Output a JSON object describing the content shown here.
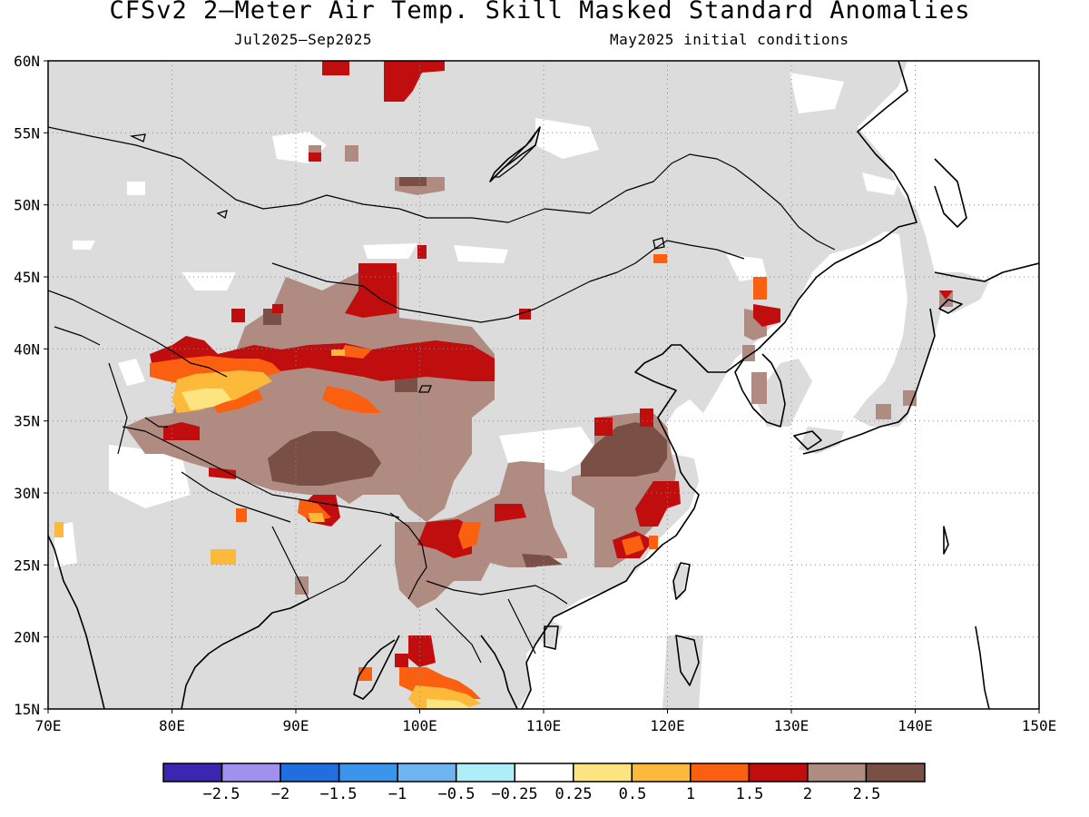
{
  "header": {
    "title": "CFSv2 2—Meter Air Temp. Skill Masked Standard Anomalies",
    "period": "Jul2025—Sep2025",
    "init": "May2025 initial conditions"
  },
  "map": {
    "lon_range": [
      70,
      150
    ],
    "lat_range": [
      15,
      60
    ],
    "lon_ticks": [
      "70E",
      "80E",
      "90E",
      "100E",
      "110E",
      "120E",
      "130E",
      "140E",
      "150E"
    ],
    "lat_ticks": [
      "15N",
      "20N",
      "25N",
      "30N",
      "35N",
      "40N",
      "45N",
      "50N",
      "55N",
      "60N"
    ],
    "masked_color": "#dcdcdc",
    "no_skill_color": "#ffffff",
    "gridlines": "dotted"
  },
  "colorbar": {
    "labels": [
      "−2.5",
      "−2",
      "−1.5",
      "−1",
      "−0.5",
      "−0.25",
      "0.25",
      "0.5",
      "1",
      "1.5",
      "2",
      "2.5"
    ],
    "colors": [
      "#3a26b0",
      "#a090ef",
      "#1f6fe0",
      "#3a94ec",
      "#6eb4f0",
      "#aeeef8",
      "#ffffff",
      "#fee480",
      "#fdba3a",
      "#fa6010",
      "#c00d0d",
      "#b08b82",
      "#7a5046"
    ]
  }
}
